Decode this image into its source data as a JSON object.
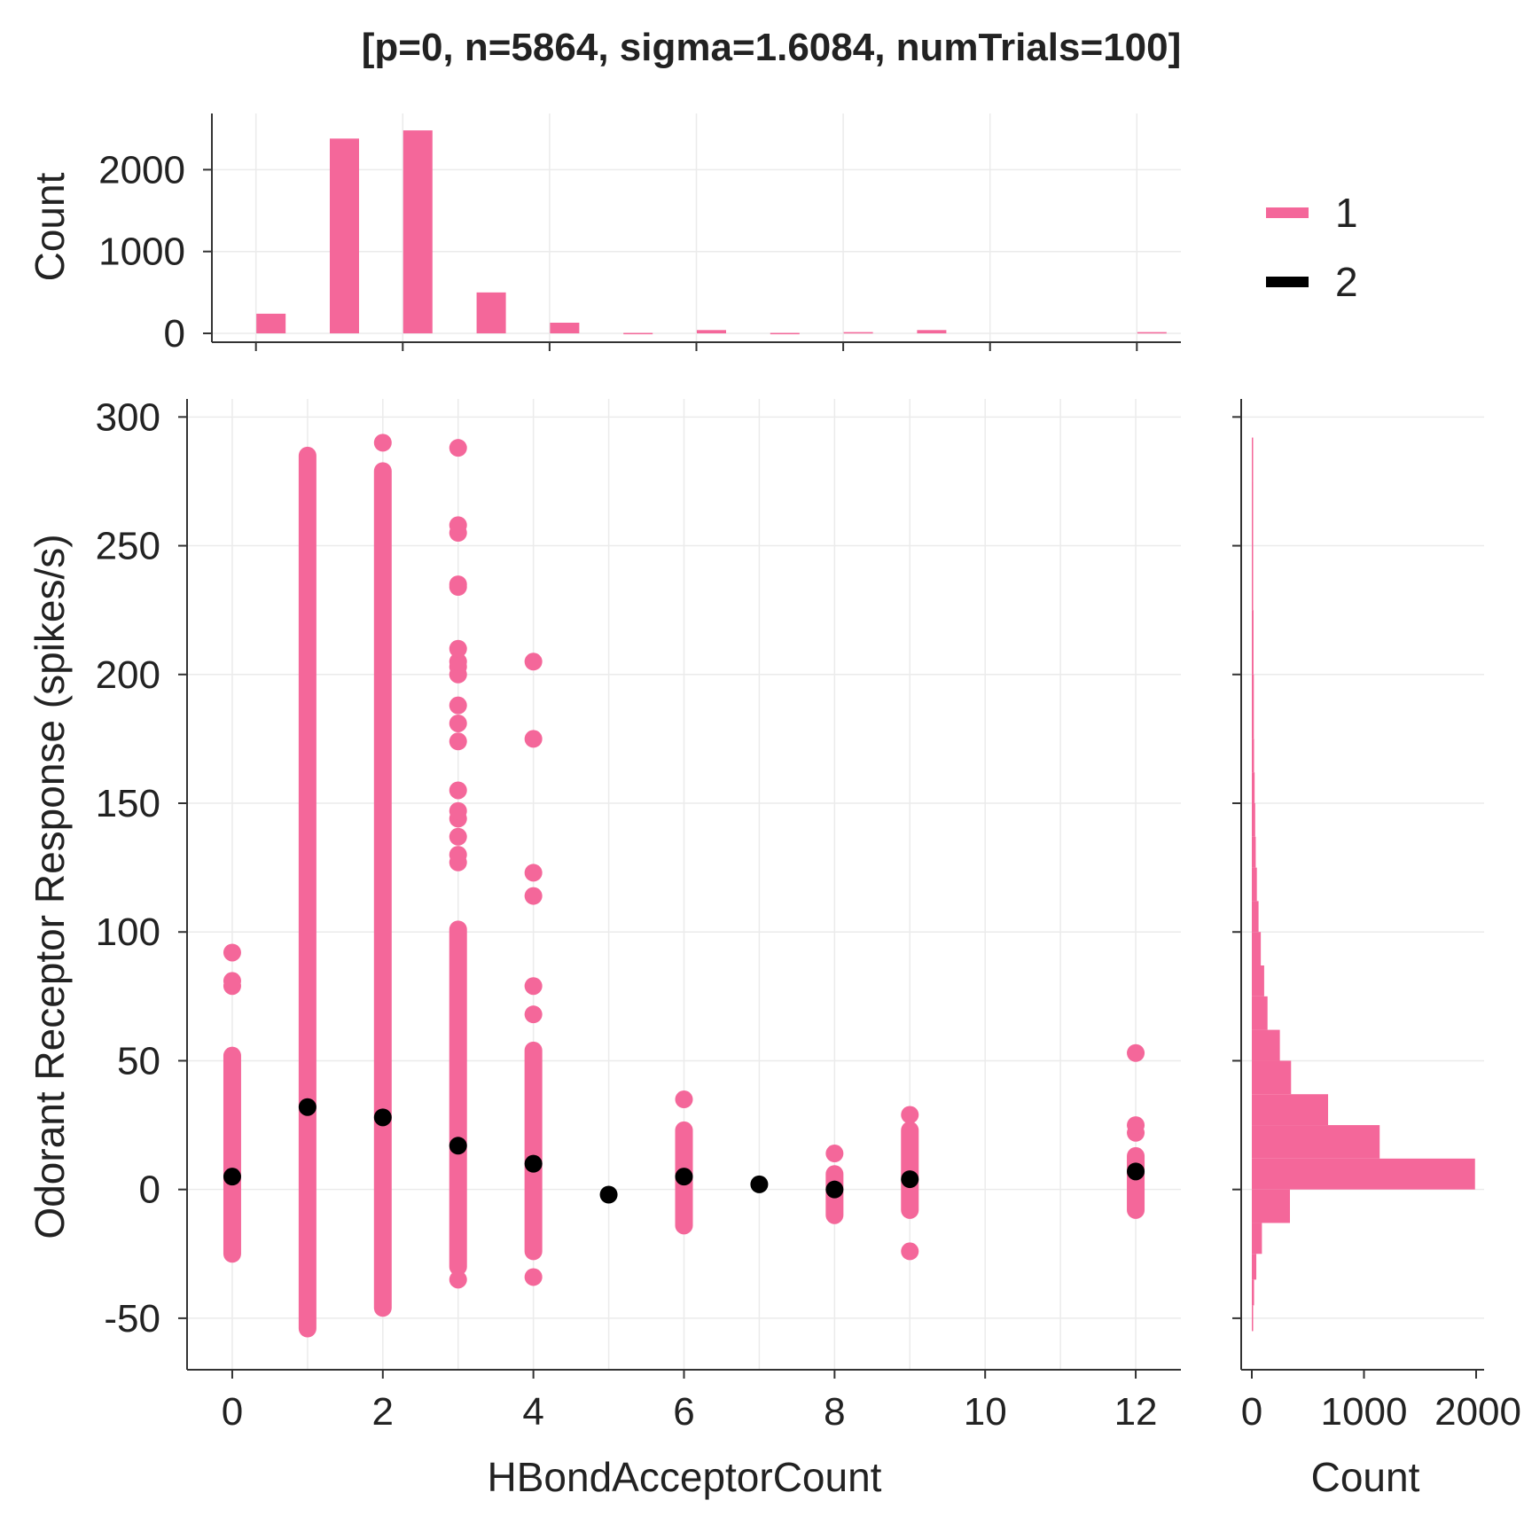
{
  "chart_data": {
    "type": "scatter",
    "title": "[p=0, n=5864, sigma=1.6084, numTrials=100]",
    "xlabel": "HBondAcceptorCount",
    "ylabel": "Odorant Receptor Response (spikes/s)",
    "xlim": [
      -0.6,
      12.6
    ],
    "ylim": [
      -70,
      307
    ],
    "x_ticks": [
      "0",
      "2",
      "4",
      "6",
      "8",
      "10",
      "12"
    ],
    "y_ticks": [
      "-50",
      "0",
      "50",
      "100",
      "150",
      "200",
      "250",
      "300"
    ],
    "grid": true,
    "legend": {
      "position": "top-right",
      "entries": [
        {
          "label": "1",
          "color": "#f4679a"
        },
        {
          "label": "2",
          "color": "#000000"
        }
      ]
    },
    "series": [
      {
        "color": "#f4679a",
        "columns": [
          {
            "x": 0,
            "min": -25,
            "max": 52,
            "outliers": [
              79,
              81,
              92
            ]
          },
          {
            "x": 1,
            "min": -54,
            "max": 285,
            "outliers": []
          },
          {
            "x": 2,
            "min": -46,
            "max": 279,
            "outliers": [
              290
            ]
          },
          {
            "x": 3,
            "min": -30,
            "max": 101,
            "outliers": [
              -35,
              127,
              130,
              137,
              144,
              147,
              155,
              174,
              181,
              188,
              200,
              203,
              205,
              210,
              234,
              235,
              255,
              258,
              288
            ]
          },
          {
            "x": 4,
            "min": -24,
            "max": 54,
            "outliers": [
              -34,
              68,
              79,
              114,
              123,
              175,
              205
            ]
          },
          {
            "x": 6,
            "min": -14,
            "max": 23,
            "outliers": [
              35
            ]
          },
          {
            "x": 8,
            "min": -10,
            "max": 6,
            "outliers": [
              14
            ]
          },
          {
            "x": 9,
            "min": -8,
            "max": 23,
            "outliers": [
              -24,
              29
            ]
          },
          {
            "x": 12,
            "min": -8,
            "max": 13,
            "outliers": [
              22,
              25,
              53
            ]
          }
        ]
      },
      {
        "color": "#000000",
        "points": [
          {
            "x": 0,
            "y": 5
          },
          {
            "x": 1,
            "y": 32
          },
          {
            "x": 2,
            "y": 28
          },
          {
            "x": 3,
            "y": 17
          },
          {
            "x": 4,
            "y": 10
          },
          {
            "x": 5,
            "y": -2
          },
          {
            "x": 6,
            "y": 5
          },
          {
            "x": 7,
            "y": 2
          },
          {
            "x": 8,
            "y": 0
          },
          {
            "x": 9,
            "y": 4
          },
          {
            "x": 12,
            "y": 7
          }
        ]
      }
    ],
    "top_histogram": {
      "ylabel": "Count",
      "ylim": [
        0,
        2600
      ],
      "y_ticks": [
        "0",
        "1000",
        "2000"
      ],
      "color": "#f4679a",
      "bins": [
        {
          "x": 0,
          "count": 240
        },
        {
          "x": 1,
          "count": 2380
        },
        {
          "x": 2,
          "count": 2480
        },
        {
          "x": 3,
          "count": 500
        },
        {
          "x": 4,
          "count": 130
        },
        {
          "x": 5,
          "count": 5
        },
        {
          "x": 6,
          "count": 40
        },
        {
          "x": 7,
          "count": 5
        },
        {
          "x": 8,
          "count": 15
        },
        {
          "x": 9,
          "count": 40
        },
        {
          "x": 12,
          "count": 15
        }
      ]
    },
    "right_histogram": {
      "xlabel": "Count",
      "xlim": [
        0,
        2000
      ],
      "x_ticks": [
        "0",
        "1000",
        "2000"
      ],
      "color": "#f4679a",
      "bins": [
        {
          "from": -55,
          "to": -45,
          "count": 10
        },
        {
          "from": -45,
          "to": -35,
          "count": 20
        },
        {
          "from": -35,
          "to": -25,
          "count": 40
        },
        {
          "from": -25,
          "to": -13,
          "count": 90
        },
        {
          "from": -13,
          "to": 0,
          "count": 340
        },
        {
          "from": 0,
          "to": 12,
          "count": 1990
        },
        {
          "from": 12,
          "to": 25,
          "count": 1140
        },
        {
          "from": 25,
          "to": 37,
          "count": 680
        },
        {
          "from": 37,
          "to": 50,
          "count": 350
        },
        {
          "from": 50,
          "to": 62,
          "count": 250
        },
        {
          "from": 62,
          "to": 75,
          "count": 140
        },
        {
          "from": 75,
          "to": 87,
          "count": 110
        },
        {
          "from": 87,
          "to": 100,
          "count": 80
        },
        {
          "from": 100,
          "to": 112,
          "count": 60
        },
        {
          "from": 112,
          "to": 125,
          "count": 45
        },
        {
          "from": 125,
          "to": 137,
          "count": 35
        },
        {
          "from": 137,
          "to": 150,
          "count": 30
        },
        {
          "from": 150,
          "to": 162,
          "count": 25
        },
        {
          "from": 162,
          "to": 175,
          "count": 20
        },
        {
          "from": 175,
          "to": 200,
          "count": 18
        },
        {
          "from": 200,
          "to": 225,
          "count": 15
        },
        {
          "from": 225,
          "to": 250,
          "count": 12
        },
        {
          "from": 250,
          "to": 275,
          "count": 8
        },
        {
          "from": 275,
          "to": 292,
          "count": 5
        }
      ]
    }
  }
}
